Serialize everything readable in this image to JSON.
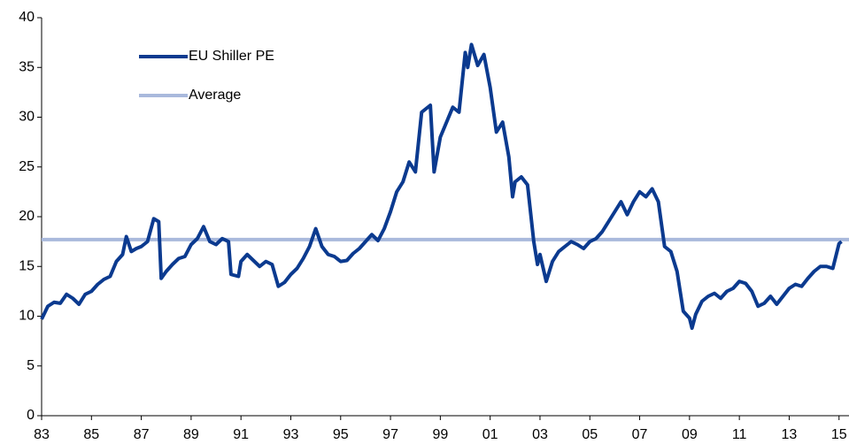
{
  "chart_data": {
    "type": "line",
    "x": [
      1983.0,
      1983.25,
      1983.5,
      1983.75,
      1984.0,
      1984.25,
      1984.5,
      1984.75,
      1985.0,
      1985.25,
      1985.5,
      1985.75,
      1986.0,
      1986.25,
      1986.4,
      1986.6,
      1986.8,
      1987.0,
      1987.25,
      1987.5,
      1987.7,
      1987.8,
      1988.0,
      1988.25,
      1988.5,
      1988.75,
      1989.0,
      1989.25,
      1989.5,
      1989.75,
      1990.0,
      1990.25,
      1990.5,
      1990.6,
      1990.9,
      1991.0,
      1991.25,
      1991.5,
      1991.75,
      1992.0,
      1992.25,
      1992.5,
      1992.75,
      1993.0,
      1993.25,
      1993.5,
      1993.75,
      1994.0,
      1994.25,
      1994.5,
      1994.75,
      1995.0,
      1995.25,
      1995.5,
      1995.75,
      1996.0,
      1996.25,
      1996.5,
      1996.75,
      1997.0,
      1997.25,
      1997.5,
      1997.75,
      1998.0,
      1998.25,
      1998.5,
      1998.6,
      1998.75,
      1999.0,
      1999.25,
      1999.5,
      1999.75,
      2000.0,
      2000.1,
      2000.25,
      2000.5,
      2000.75,
      2001.0,
      2001.25,
      2001.5,
      2001.75,
      2001.9,
      2002.0,
      2002.25,
      2002.5,
      2002.75,
      2002.9,
      2003.0,
      2003.25,
      2003.5,
      2003.75,
      2004.0,
      2004.25,
      2004.5,
      2004.75,
      2005.0,
      2005.25,
      2005.5,
      2005.75,
      2006.0,
      2006.25,
      2006.5,
      2006.75,
      2007.0,
      2007.25,
      2007.5,
      2007.75,
      2008.0,
      2008.25,
      2008.5,
      2008.75,
      2009.0,
      2009.1,
      2009.25,
      2009.5,
      2009.75,
      2010.0,
      2010.25,
      2010.5,
      2010.75,
      2011.0,
      2011.25,
      2011.5,
      2011.75,
      2012.0,
      2012.25,
      2012.5,
      2012.75,
      2013.0,
      2013.25,
      2013.5,
      2013.75,
      2014.0,
      2014.25,
      2014.5,
      2014.75,
      2015.0,
      2015.1
    ],
    "series": [
      {
        "name": "EU Shiller PE",
        "color": "#0b3a8f",
        "values": [
          9.7,
          11,
          11.4,
          11.3,
          12.2,
          11.8,
          11.2,
          12.2,
          12.5,
          13.2,
          13.7,
          14,
          15.5,
          16.2,
          18,
          16.5,
          16.8,
          17,
          17.5,
          19.8,
          19.5,
          13.8,
          14.5,
          15.2,
          15.8,
          16.0,
          17.2,
          17.8,
          19,
          17.5,
          17.2,
          17.8,
          17.5,
          14.2,
          14.0,
          15.5,
          16.2,
          15.6,
          15.0,
          15.5,
          15.2,
          13.0,
          13.4,
          14.2,
          14.8,
          15.8,
          17,
          18.8,
          17,
          16.2,
          16.0,
          15.5,
          15.6,
          16.3,
          16.8,
          17.5,
          18.2,
          17.6,
          18.8,
          20.5,
          22.5,
          23.5,
          25.5,
          24.5,
          30.5,
          31.0,
          31.2,
          24.5,
          28.0,
          29.5,
          31.0,
          30.5,
          36.5,
          35,
          37.3,
          35.2,
          36.3,
          33,
          28.5,
          29.5,
          26,
          22,
          23.5,
          24,
          23.2,
          17.5,
          15.2,
          16.2,
          13.5,
          15.5,
          16.5,
          17.0,
          17.5,
          17.2,
          16.8,
          17.5,
          17.8,
          18.5,
          19.5,
          20.5,
          21.5,
          20.2,
          21.5,
          22.5,
          22.0,
          22.8,
          21.5,
          17.0,
          16.5,
          14.5,
          10.5,
          9.8,
          8.8,
          10.2,
          11.5,
          12.0,
          12.3,
          11.8,
          12.5,
          12.8,
          13.5,
          13.3,
          12.5,
          11.0,
          11.3,
          12.0,
          11.2,
          12.0,
          12.8,
          13.2,
          13.0,
          13.8,
          14.5,
          15.0,
          15.0,
          14.8,
          17.3,
          17.5
        ]
      }
    ],
    "average": {
      "name": "Average",
      "value": 17.7,
      "color": "#a9b9dc"
    },
    "xlim": [
      1983,
      2015.4
    ],
    "xticks": [
      {
        "value": 1983,
        "label": "83"
      },
      {
        "value": 1985,
        "label": "85"
      },
      {
        "value": 1987,
        "label": "87"
      },
      {
        "value": 1989,
        "label": "89"
      },
      {
        "value": 1991,
        "label": "91"
      },
      {
        "value": 1993,
        "label": "93"
      },
      {
        "value": 1995,
        "label": "95"
      },
      {
        "value": 1997,
        "label": "97"
      },
      {
        "value": 1999,
        "label": "99"
      },
      {
        "value": 2001,
        "label": "01"
      },
      {
        "value": 2003,
        "label": "03"
      },
      {
        "value": 2005,
        "label": "05"
      },
      {
        "value": 2007,
        "label": "07"
      },
      {
        "value": 2009,
        "label": "09"
      },
      {
        "value": 2011,
        "label": "11"
      },
      {
        "value": 2013,
        "label": "13"
      },
      {
        "value": 2015,
        "label": "15"
      }
    ],
    "ylim": [
      0,
      40
    ],
    "yticks": [
      0,
      5,
      10,
      15,
      20,
      25,
      30,
      35,
      40
    ],
    "legend": "upper left"
  }
}
